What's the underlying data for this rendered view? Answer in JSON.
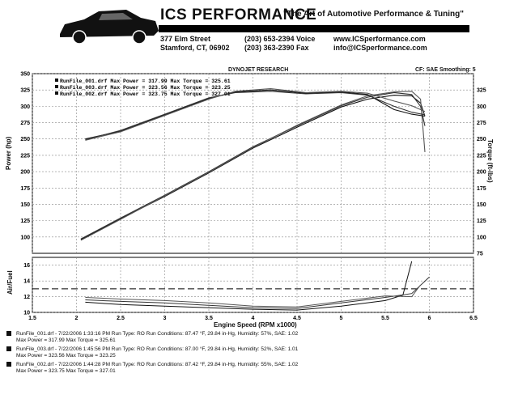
{
  "header": {
    "company": "ICS PERFORMANCE",
    "tagline": "\"The Art of Automotive Performance & Tuning\"",
    "address_line1": "377 Elm Street",
    "address_line2": "Stamford, CT, 06902",
    "phone_voice": "(203) 653-2394 Voice",
    "phone_fax": "(203) 363-2390 Fax",
    "website": "www.ICSperformance.com",
    "email": "info@ICSperformance.com"
  },
  "chart_header": {
    "title": "DYNOJET RESEARCH",
    "settings": "CF: SAE  Smoothing: 5"
  },
  "chart_data": [
    {
      "type": "line",
      "panel": "power-torque",
      "xlabel": "Engine Speed (RPM x1000)",
      "ylabel": "Power (hp)",
      "y2label": "Torque (ft-lbs)",
      "xlim": [
        1.5,
        6.5
      ],
      "ylim": [
        75,
        350
      ],
      "y2lim": [
        75,
        350
      ],
      "grid": true,
      "x_ticks": [
        "1.5",
        "2",
        "2.5",
        "3",
        "3.5",
        "4",
        "4.5",
        "5",
        "5.5",
        "6",
        "6.5"
      ],
      "y_ticks": [
        "100",
        "125",
        "150",
        "175",
        "200",
        "225",
        "250",
        "275",
        "300",
        "325",
        "350"
      ],
      "y2_ticks": [
        "75",
        "100",
        "125",
        "150",
        "175",
        "200",
        "225",
        "250",
        "275",
        "300",
        "325"
      ],
      "legend_position": "top-left",
      "legend": [
        "RunFile_001.drf Max Power = 317.99   Max Torque = 325.61",
        "RunFile_003.drf Max Power = 323.56   Max Torque = 323.25",
        "RunFile_002.drf Max Power = 323.75   Max Torque = 327.01"
      ],
      "series": [
        {
          "name": "RunFile_001.drf",
          "kind": "power",
          "color": "#111111",
          "x": [
            2.05,
            2.5,
            3.0,
            3.5,
            4.0,
            4.5,
            5.0,
            5.3,
            5.6,
            5.8,
            5.9,
            5.95
          ],
          "y": [
            96,
            128,
            162,
            198,
            236,
            268,
            299,
            311,
            317,
            316,
            305,
            285
          ]
        },
        {
          "name": "RunFile_003.drf",
          "kind": "power",
          "color": "#333333",
          "x": [
            2.05,
            2.5,
            3.0,
            3.5,
            4.0,
            4.5,
            5.0,
            5.3,
            5.6,
            5.8,
            5.9,
            5.95
          ],
          "y": [
            97,
            129,
            164,
            200,
            238,
            270,
            301,
            314,
            321,
            318,
            300,
            270
          ]
        },
        {
          "name": "RunFile_002.drf",
          "kind": "power",
          "color": "#555555",
          "x": [
            2.05,
            2.5,
            3.0,
            3.5,
            4.0,
            4.5,
            5.0,
            5.3,
            5.6,
            5.8,
            5.9,
            5.95
          ],
          "y": [
            95,
            127,
            163,
            199,
            237,
            271,
            302,
            316,
            322,
            323,
            311,
            230
          ]
        },
        {
          "name": "RunFile_001.drf",
          "kind": "torque",
          "color": "#111111",
          "x": [
            2.1,
            2.5,
            3.0,
            3.5,
            3.8,
            4.2,
            4.6,
            5.0,
            5.3,
            5.6,
            5.8,
            5.95
          ],
          "y": [
            250,
            262,
            287,
            312,
            322,
            325,
            320,
            322,
            318,
            295,
            288,
            285
          ]
        },
        {
          "name": "RunFile_003.drf",
          "kind": "torque",
          "color": "#333333",
          "x": [
            2.1,
            2.5,
            3.0,
            3.5,
            3.8,
            4.2,
            4.6,
            5.0,
            5.3,
            5.6,
            5.8,
            5.95
          ],
          "y": [
            249,
            263,
            288,
            313,
            321,
            323,
            319,
            321,
            317,
            300,
            291,
            287
          ]
        },
        {
          "name": "RunFile_002.drf",
          "kind": "torque",
          "color": "#555555",
          "x": [
            2.1,
            2.5,
            3.0,
            3.5,
            3.8,
            4.2,
            4.6,
            5.0,
            5.3,
            5.6,
            5.8,
            5.95
          ],
          "y": [
            248,
            261,
            286,
            311,
            323,
            327,
            321,
            323,
            320,
            308,
            301,
            292
          ]
        }
      ]
    },
    {
      "type": "line",
      "panel": "air-fuel",
      "xlabel": "Engine Speed (RPM x1000)",
      "ylabel": "Air/Fuel",
      "xlim": [
        1.5,
        6.5
      ],
      "ylim": [
        10,
        17
      ],
      "grid": true,
      "y_ticks": [
        "10",
        "12",
        "14",
        "16"
      ],
      "reference_line": 13,
      "series": [
        {
          "name": "RunFile_001.drf",
          "color": "#111111",
          "x": [
            2.1,
            2.5,
            3.0,
            3.5,
            4.0,
            4.5,
            5.0,
            5.5,
            5.7,
            5.8
          ],
          "y": [
            11.3,
            11.0,
            10.8,
            10.6,
            10.4,
            10.3,
            10.8,
            11.5,
            12.2,
            16.5
          ]
        },
        {
          "name": "RunFile_003.drf",
          "color": "#333333",
          "x": [
            2.1,
            2.5,
            3.0,
            3.5,
            4.0,
            4.5,
            5.0,
            5.5,
            5.8,
            6.0
          ],
          "y": [
            11.6,
            11.4,
            11.2,
            10.9,
            10.6,
            10.5,
            11.2,
            11.9,
            12.4,
            14.5
          ]
        },
        {
          "name": "RunFile_002.drf",
          "color": "#555555",
          "x": [
            2.1,
            2.5,
            3.0,
            3.5,
            4.0,
            4.5,
            5.0,
            5.5,
            5.8,
            5.9
          ],
          "y": [
            11.9,
            11.7,
            11.5,
            11.2,
            10.8,
            10.7,
            11.4,
            12.1,
            12.0,
            13.5
          ]
        }
      ]
    }
  ],
  "runs": [
    {
      "line1": "RunFile_001.drf - 7/22/2006 1:33:16 PM  Run Type: RO  Run Conditions: 87.47 °F, 29.84 in-Hg,  Humidity:  57%, SAE: 1.02",
      "line2": "Max Power = 317.99  Max Torque = 325.61"
    },
    {
      "line1": "RunFile_003.drf - 7/22/2006 1:45:56 PM  Run Type: RO  Run Conditions: 87.00 °F, 29.84 in-Hg,  Humidity:  52%, SAE: 1.01",
      "line2": "Max Power = 323.56  Max Torque = 323.25"
    },
    {
      "line1": "RunFile_002.drf - 7/22/2006 1:44:28 PM  Run Type: RO  Run Conditions: 87.42 °F, 29.84 in-Hg,  Humidity:  55%, SAE: 1.02",
      "line2": "Max Power = 323.75  Max Torque = 327.01"
    }
  ]
}
